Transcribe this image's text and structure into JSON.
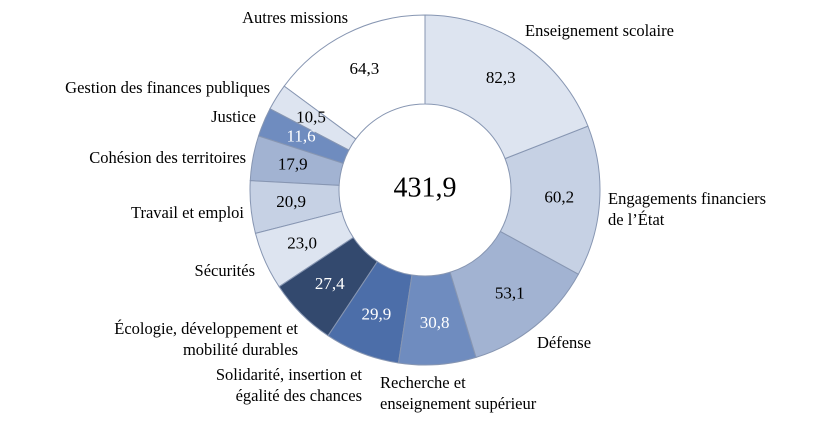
{
  "chart_data": {
    "type": "donut",
    "categories": [
      "Enseignement scolaire",
      "Engagements financiers\nde l’État",
      "Défense",
      "Recherche et\nenseignement supérieur",
      "Solidarité, insertion et\négalité des chances",
      "Écologie, développement et\nmobilité durables",
      "Sécurités",
      "Travail et emploi",
      "Cohésion des territoires",
      "Justice",
      "Gestion des finances publiques",
      "Autres missions"
    ],
    "values": [
      82.3,
      60.2,
      53.1,
      30.8,
      29.9,
      27.4,
      23.0,
      20.9,
      17.9,
      11.6,
      10.5,
      64.3
    ],
    "value_labels": [
      "82,3",
      "60,2",
      "53,1",
      "30,8",
      "29,9",
      "27,4",
      "23,0",
      "20,9",
      "17,9",
      "11,6",
      "10,5",
      "64,3"
    ],
    "colors": [
      "#dde4f0",
      "#c6d1e4",
      "#a2b3d2",
      "#6f8cbf",
      "#4c6ea9",
      "#33496e",
      "#dde4f0",
      "#c6d1e4",
      "#a2b3d2",
      "#6f8cbf",
      "#dde4f0",
      "#ffffff"
    ],
    "value_label_colors": [
      "#000000",
      "#000000",
      "#000000",
      "#ffffff",
      "#ffffff",
      "#ffffff",
      "#000000",
      "#000000",
      "#000000",
      "#ffffff",
      "#000000",
      "#000000"
    ],
    "total": {
      "value": 431.9,
      "label": "431,9"
    }
  }
}
